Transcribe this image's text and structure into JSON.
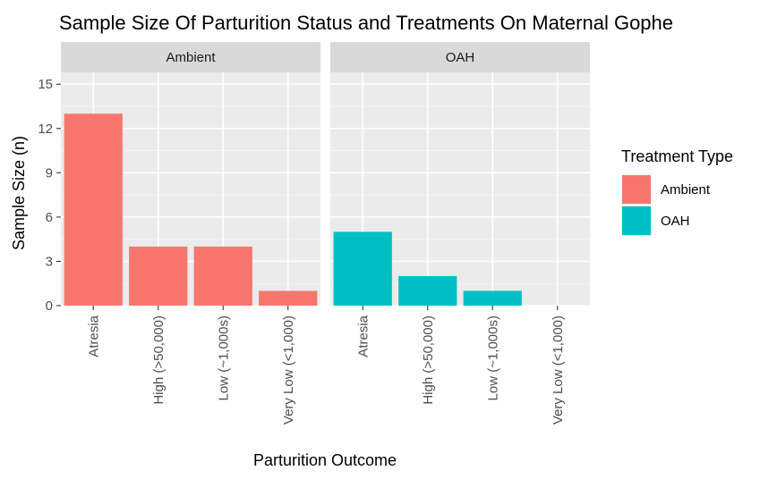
{
  "chart_data": {
    "type": "bar",
    "title": "Sample Size Of Parturition Status and Treatments On Maternal Gophe",
    "xlabel": "Parturition Outcome",
    "ylabel": "Sample Size (n)",
    "ylim": [
      0,
      15.8
    ],
    "yticks": [
      "0",
      "3",
      "6",
      "9",
      "12",
      "15"
    ],
    "grid": true,
    "categories": [
      "Atresia",
      "High (>50,000)",
      "Low (~1,000s)",
      "Very Low (<1,000)"
    ],
    "facets": [
      {
        "name": "Ambient",
        "color": "#F8766D",
        "values": [
          13,
          4,
          4,
          1
        ]
      },
      {
        "name": "OAH",
        "color": "#00BFC4",
        "values": [
          5,
          2,
          1,
          0
        ]
      }
    ],
    "legend": {
      "title": "Treatment Type",
      "position": "right",
      "entries": [
        {
          "label": "Ambient",
          "color": "#F8766D"
        },
        {
          "label": "OAH",
          "color": "#00BFC4"
        }
      ]
    }
  }
}
